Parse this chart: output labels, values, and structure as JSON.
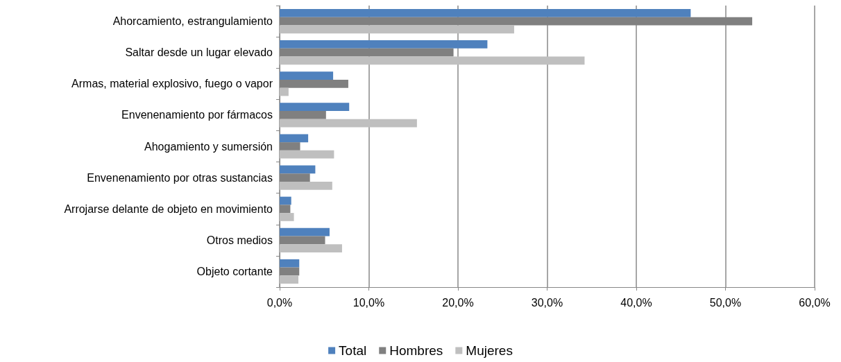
{
  "chart_data": {
    "type": "bar",
    "orientation": "horizontal",
    "categories": [
      "Ahorcamiento, estrangulamiento",
      "Saltar desde un lugar elevado",
      "Armas, material explosivo, fuego o vapor",
      "Envenenamiento por fármacos",
      "Ahogamiento y sumersión",
      "Envenenamiento por otras sustancias",
      "Arrojarse delante de objeto en movimiento",
      "Otros medios",
      "Objeto cortante"
    ],
    "series": [
      {
        "name": "Total",
        "color": "#4f81bd",
        "values": [
          46.1,
          23.3,
          6.0,
          7.8,
          3.2,
          4.0,
          1.3,
          5.6,
          2.2
        ]
      },
      {
        "name": "Hombres",
        "color": "#808080",
        "values": [
          53.0,
          19.5,
          7.7,
          5.2,
          2.3,
          3.4,
          1.2,
          5.1,
          2.2
        ]
      },
      {
        "name": "Mujeres",
        "color": "#bfbfbf",
        "values": [
          26.3,
          34.2,
          1.0,
          15.4,
          6.1,
          5.9,
          1.6,
          7.0,
          2.1
        ]
      }
    ],
    "xlim": [
      0,
      60
    ],
    "xticks": [
      {
        "value": 0,
        "label": "0,0%"
      },
      {
        "value": 10,
        "label": "10,0%"
      },
      {
        "value": 20,
        "label": "20,0%"
      },
      {
        "value": 30,
        "label": "30,0%"
      },
      {
        "value": 40,
        "label": "40,0%"
      },
      {
        "value": 50,
        "label": "50,0%"
      },
      {
        "value": 60,
        "label": "60,0%"
      }
    ],
    "grid": "x",
    "legend": "bottom"
  }
}
